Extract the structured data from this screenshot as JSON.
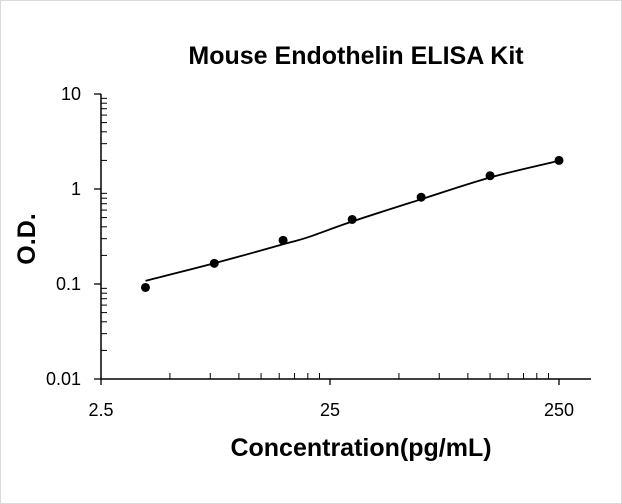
{
  "chart_data": {
    "type": "scatter",
    "title": "Mouse Endothelin  ELISA Kit",
    "xlabel": "Concentration(pg/mL)",
    "ylabel": "O.D.",
    "x_scale": "log",
    "y_scale": "log",
    "xlim": [
      2.5,
      250
    ],
    "ylim": [
      0.01,
      10
    ],
    "x_ticks": [
      {
        "value": 2.5,
        "label": "2.5"
      },
      {
        "value": 25,
        "label": "25"
      },
      {
        "value": 250,
        "label": "250"
      }
    ],
    "y_ticks": [
      {
        "value": 0.01,
        "label": "0.01"
      },
      {
        "value": 0.1,
        "label": "0.1"
      },
      {
        "value": 1,
        "label": "1"
      },
      {
        "value": 10,
        "label": "10"
      }
    ],
    "grid": false,
    "legend": "none",
    "series": [
      {
        "points": [
          {
            "x": 3.91,
            "y": 0.092
          },
          {
            "x": 7.81,
            "y": 0.165
          },
          {
            "x": 15.6,
            "y": 0.288
          },
          {
            "x": 31.25,
            "y": 0.478
          },
          {
            "x": 62.5,
            "y": 0.82
          },
          {
            "x": 125,
            "y": 1.38
          },
          {
            "x": 250,
            "y": 2.0
          }
        ],
        "curve": [
          {
            "x": 3.91,
            "y": 0.108
          },
          {
            "x": 7.81,
            "y": 0.165
          },
          {
            "x": 15.6,
            "y": 0.262
          },
          {
            "x": 20,
            "y": 0.31
          },
          {
            "x": 31.25,
            "y": 0.455
          },
          {
            "x": 62.5,
            "y": 0.78
          },
          {
            "x": 125,
            "y": 1.32
          },
          {
            "x": 250,
            "y": 1.98
          }
        ],
        "marker_color": "#000000",
        "line_color": "#000000"
      }
    ]
  }
}
